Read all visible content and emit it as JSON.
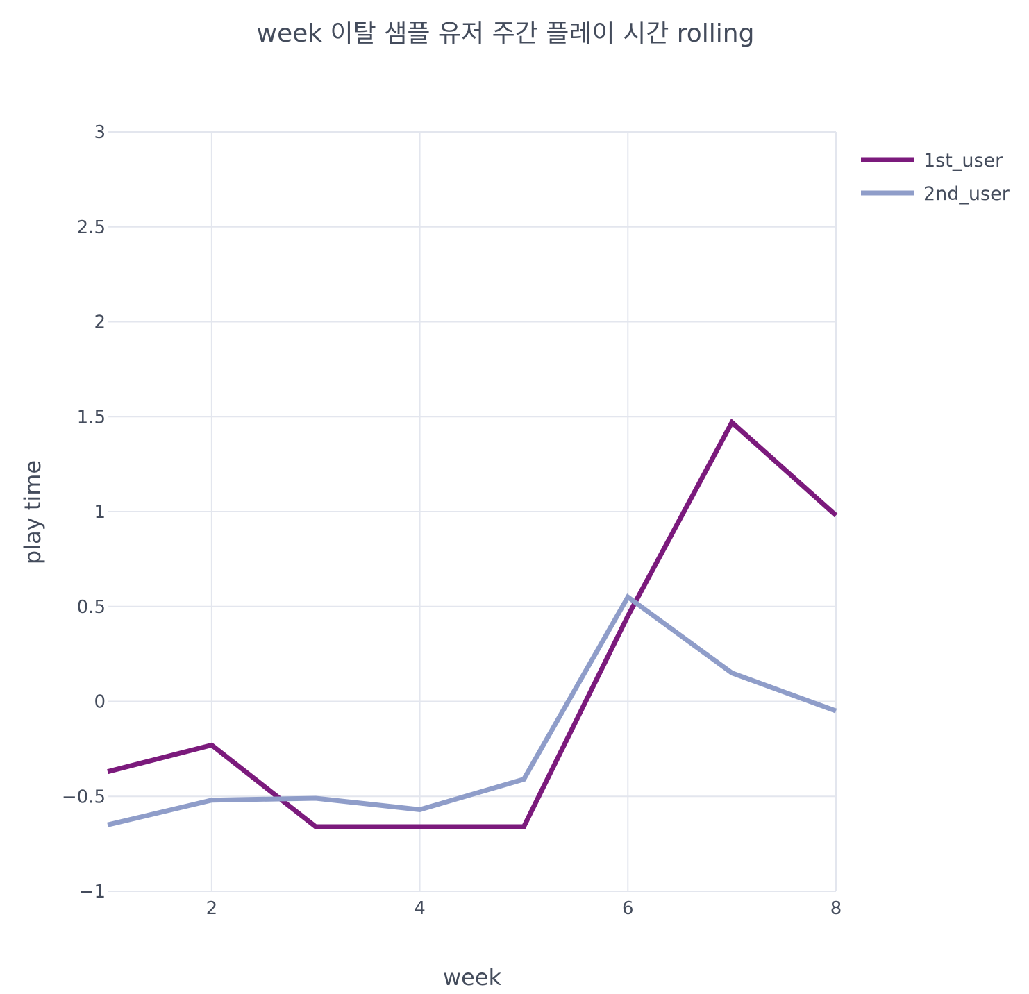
{
  "chart_data": {
    "type": "line",
    "title": "week 이탈 샘플 유저 주간 플레이 시간 rolling",
    "xlabel": "week",
    "ylabel": "play time",
    "xlim": [
      1,
      8
    ],
    "ylim": [
      -1,
      3
    ],
    "x_ticks": [
      2,
      4,
      6,
      8
    ],
    "y_ticks": [
      -1,
      -0.5,
      0,
      0.5,
      1,
      1.5,
      2,
      2.5,
      3
    ],
    "y_tick_labels": [
      "−1",
      "−0.5",
      "0",
      "0.5",
      "1",
      "1.5",
      "2",
      "2.5",
      "3"
    ],
    "grid": true,
    "legend": "top-right",
    "x": [
      1,
      2,
      3,
      4,
      5,
      6,
      7,
      8
    ],
    "series": [
      {
        "name": "1st_user",
        "color": "#7b1a7c",
        "values": [
          -0.37,
          -0.23,
          -0.66,
          -0.66,
          -0.66,
          0.45,
          1.47,
          0.98
        ]
      },
      {
        "name": "2nd_user",
        "color": "#8f9dc9",
        "values": [
          -0.65,
          -0.52,
          -0.51,
          -0.57,
          -0.41,
          0.55,
          0.15,
          -0.05
        ]
      }
    ]
  }
}
